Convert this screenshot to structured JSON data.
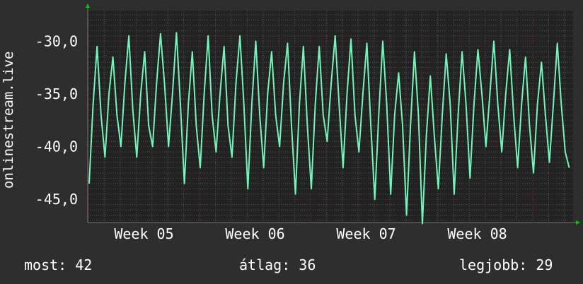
{
  "chart_data": {
    "type": "line",
    "ylabel": "onlinestream.live",
    "ylim": [
      -47.2,
      -27.1
    ],
    "y_ticks": [
      "-30,0",
      "-35,0",
      "-40,0",
      "-45,0"
    ],
    "y_tick_values": [
      -30,
      -35,
      -40,
      -45
    ],
    "x_ticks": [
      "Week 05",
      "Week 06",
      "Week 07",
      "Week 08"
    ],
    "x_sampling": "6h",
    "grid": true,
    "colors": {
      "background": "#2e2e2e",
      "plot": "#222222",
      "line": "#73f5b8",
      "major_grid": "#7a3030",
      "minor_grid": "#555555",
      "arrow": "#00cc00"
    },
    "series": [
      {
        "values": [
          -43.5,
          -36,
          -30.5,
          -37,
          -41,
          -35,
          -31.5,
          -37,
          -40,
          -34,
          -29.5,
          -36.5,
          -41,
          -35,
          -31,
          -38,
          -40,
          -34,
          -29.3,
          -34,
          -40,
          -35,
          -29.2,
          -36,
          -43.5,
          -36,
          -31,
          -38,
          -42,
          -35,
          -29.5,
          -37,
          -40.5,
          -35,
          -30.5,
          -38,
          -41,
          -34,
          -29.5,
          -36,
          -44,
          -36,
          -30,
          -37,
          -42,
          -35,
          -31,
          -37,
          -40,
          -34,
          -30.2,
          -38,
          -44.5,
          -36,
          -30.5,
          -38,
          -44,
          -36,
          -30.5,
          -37,
          -39.5,
          -34,
          -29.5,
          -36,
          -42,
          -35,
          -29.8,
          -37,
          -40.5,
          -35,
          -30.2,
          -38,
          -45,
          -37,
          -30,
          -36,
          -44.5,
          -37,
          -33,
          -38,
          -46.5,
          -38,
          -31,
          -37,
          -47.3,
          -39,
          -33.3,
          -39,
          -44,
          -37,
          -31.2,
          -36,
          -44.5,
          -37,
          -31,
          -36,
          -43,
          -36,
          -30.8,
          -35,
          -40,
          -35,
          -30,
          -36,
          -40.5,
          -35,
          -30.8,
          -37,
          -42,
          -36,
          -31.5,
          -38,
          -42.5,
          -36,
          -32,
          -37,
          -41.5,
          -36,
          -30.2,
          -36,
          -40.5,
          -42
        ]
      }
    ]
  },
  "legend": {
    "current": "most: 42",
    "average": "átlag: 36",
    "max": "legjobb: 29"
  }
}
